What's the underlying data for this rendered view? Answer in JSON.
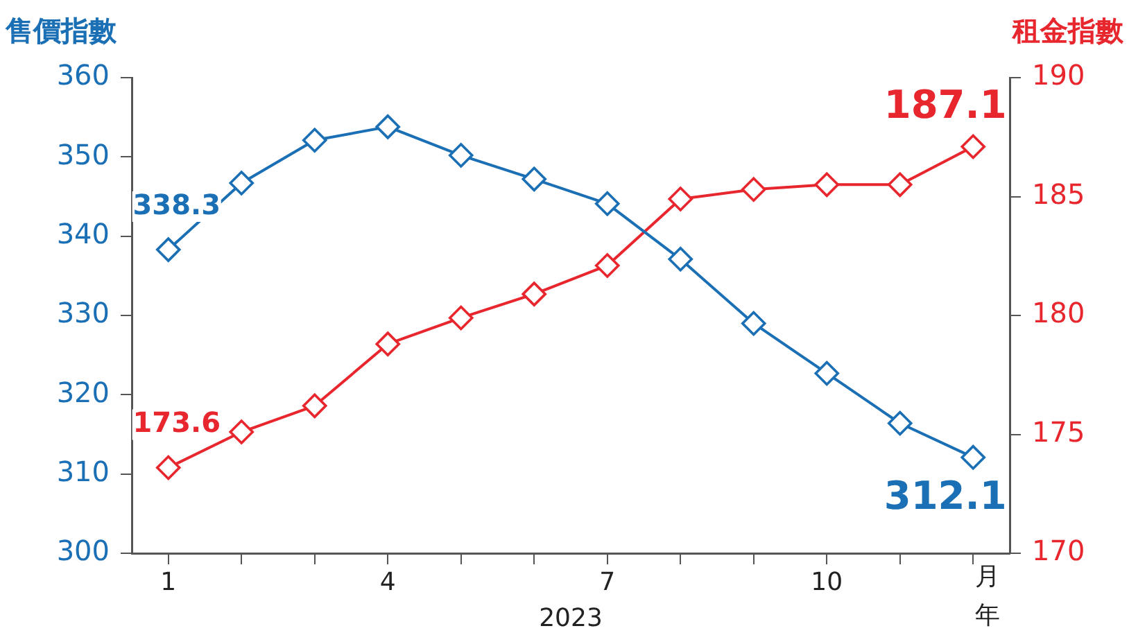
{
  "chart_data": {
    "type": "line",
    "ylabel": "售價指數",
    "y2label": "租金指數",
    "xlabel": "月年",
    "annotations": [
      "2023"
    ],
    "categories": [
      "1",
      null,
      null,
      "4",
      null,
      null,
      "7",
      null,
      null,
      "10",
      null,
      null
    ],
    "series": [
      {
        "color": "#1a6fb5",
        "values": [
          338.3,
          346.7,
          352.1,
          353.8,
          350.2,
          347.2,
          344.1,
          337.1,
          329.0,
          322.7,
          316.4,
          312.1
        ],
        "value_labels": [
          "338.3",
          null,
          null,
          null,
          null,
          null,
          null,
          null,
          null,
          null,
          null,
          "312.1"
        ]
      },
      {
        "color": "#e8262e",
        "axis": "y2",
        "values": [
          173.6,
          175.1,
          176.2,
          178.8,
          179.9,
          180.9,
          182.1,
          184.9,
          185.3,
          185.5,
          185.5,
          187.1
        ],
        "value_labels": [
          "173.6",
          null,
          null,
          null,
          null,
          null,
          null,
          null,
          null,
          null,
          null,
          "187.1"
        ]
      }
    ],
    "ylim": [
      300,
      360
    ],
    "yticks": [
      300,
      310,
      320,
      330,
      340,
      350,
      360
    ],
    "y2lim": [
      170,
      190
    ],
    "y2ticks": [
      170,
      175,
      180,
      185,
      190
    ],
    "grid": false,
    "legend": false,
    "marker": "diamond",
    "line_style": "solid"
  }
}
